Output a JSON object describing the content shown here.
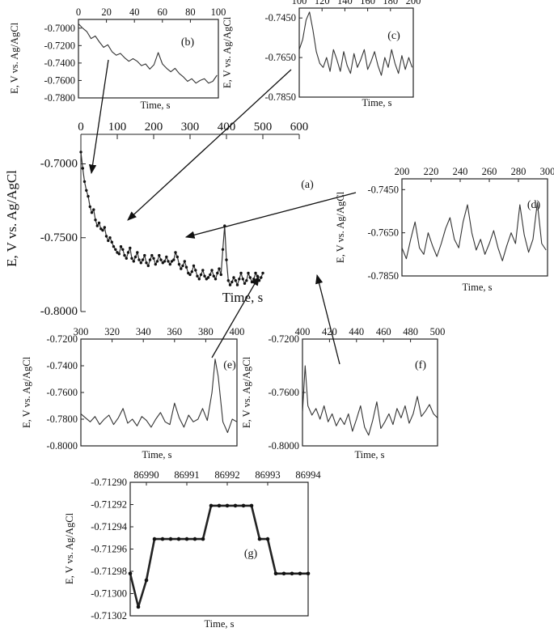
{
  "chart_data": [
    {
      "panel": "a",
      "type": "line",
      "x_range": [
        0,
        600
      ],
      "y_range": [
        -0.8,
        -0.68
      ],
      "x_ticks": [
        "0",
        "100",
        "200",
        "300",
        "400",
        "500",
        "600"
      ],
      "x_tick_values": [
        0,
        100,
        200,
        300,
        400,
        500,
        600
      ],
      "y_ticks": [
        "-0.7000",
        "-0.7500",
        "-0.8000"
      ],
      "y_tick_values": [
        -0.7,
        -0.75,
        -0.8
      ],
      "xlabel": "Time, s",
      "ylabel": "E, V vs. Ag/AgCl",
      "label": "(a)",
      "series": [
        {
          "style": "dots",
          "x": [
            0,
            5,
            10,
            15,
            20,
            25,
            30,
            35,
            40,
            45,
            50,
            55,
            60,
            65,
            70,
            75,
            80,
            85,
            90,
            95,
            100,
            105,
            110,
            115,
            120,
            125,
            130,
            135,
            140,
            145,
            150,
            155,
            160,
            165,
            170,
            175,
            180,
            185,
            190,
            195,
            200,
            205,
            210,
            215,
            220,
            225,
            230,
            235,
            240,
            245,
            250,
            255,
            260,
            265,
            270,
            275,
            280,
            285,
            290,
            295,
            300,
            305,
            310,
            315,
            320,
            325,
            330,
            335,
            340,
            345,
            350,
            355,
            360,
            365,
            370,
            375,
            380,
            385,
            390,
            395,
            400,
            405,
            410,
            415,
            420,
            425,
            430,
            435,
            440,
            445,
            450,
            455,
            460,
            465,
            470,
            475,
            480,
            485,
            490,
            495,
            500
          ],
          "y": [
            -0.692,
            -0.703,
            -0.712,
            -0.718,
            -0.722,
            -0.729,
            -0.733,
            -0.731,
            -0.738,
            -0.742,
            -0.74,
            -0.744,
            -0.745,
            -0.743,
            -0.749,
            -0.752,
            -0.75,
            -0.753,
            -0.756,
            -0.758,
            -0.76,
            -0.761,
            -0.756,
            -0.758,
            -0.762,
            -0.764,
            -0.76,
            -0.757,
            -0.764,
            -0.766,
            -0.763,
            -0.76,
            -0.765,
            -0.767,
            -0.765,
            -0.762,
            -0.767,
            -0.769,
            -0.765,
            -0.762,
            -0.764,
            -0.768,
            -0.766,
            -0.762,
            -0.765,
            -0.767,
            -0.766,
            -0.763,
            -0.766,
            -0.768,
            -0.766,
            -0.765,
            -0.76,
            -0.763,
            -0.768,
            -0.771,
            -0.769,
            -0.766,
            -0.77,
            -0.774,
            -0.775,
            -0.773,
            -0.769,
            -0.772,
            -0.776,
            -0.778,
            -0.775,
            -0.772,
            -0.776,
            -0.778,
            -0.777,
            -0.775,
            -0.772,
            -0.776,
            -0.778,
            -0.774,
            -0.771,
            -0.775,
            -0.758,
            -0.742,
            -0.765,
            -0.779,
            -0.782,
            -0.78,
            -0.777,
            -0.779,
            -0.782,
            -0.778,
            -0.774,
            -0.778,
            -0.781,
            -0.779,
            -0.774,
            -0.777,
            -0.78,
            -0.778,
            -0.774,
            -0.776,
            -0.779,
            -0.777,
            -0.774
          ]
        }
      ]
    },
    {
      "panel": "b",
      "type": "line",
      "x_range": [
        0,
        100
      ],
      "y_range": [
        -0.78,
        -0.69
      ],
      "x_ticks": [
        "0",
        "20",
        "40",
        "60",
        "80",
        "100"
      ],
      "x_tick_values": [
        0,
        20,
        40,
        60,
        80,
        100
      ],
      "y_ticks": [
        "-0.7000",
        "-0.7200",
        "-0.7400",
        "-0.7600",
        "-0.7800"
      ],
      "y_tick_values": [
        -0.7,
        -0.72,
        -0.74,
        -0.76,
        -0.78
      ],
      "xlabel": "Time, s",
      "ylabel": "E, V vs. Ag/AgCl",
      "label": "(b)",
      "series": [
        {
          "style": "line",
          "x": [
            0,
            3,
            6,
            9,
            12,
            15,
            18,
            21,
            24,
            27,
            30,
            33,
            36,
            39,
            42,
            45,
            48,
            51,
            54,
            57,
            60,
            63,
            66,
            69,
            72,
            75,
            78,
            81,
            84,
            87,
            90,
            93,
            96,
            99
          ],
          "y": [
            -0.695,
            -0.7,
            -0.704,
            -0.712,
            -0.709,
            -0.716,
            -0.722,
            -0.719,
            -0.727,
            -0.731,
            -0.729,
            -0.734,
            -0.738,
            -0.735,
            -0.738,
            -0.743,
            -0.741,
            -0.747,
            -0.742,
            -0.728,
            -0.741,
            -0.746,
            -0.75,
            -0.746,
            -0.752,
            -0.756,
            -0.761,
            -0.758,
            -0.763,
            -0.76,
            -0.758,
            -0.763,
            -0.761,
            -0.754
          ]
        }
      ]
    },
    {
      "panel": "c",
      "type": "line",
      "x_range": [
        100,
        200
      ],
      "y_range": [
        -0.785,
        -0.74
      ],
      "x_ticks": [
        "100",
        "120",
        "140",
        "160",
        "180",
        "200"
      ],
      "x_tick_values": [
        100,
        120,
        140,
        160,
        180,
        200
      ],
      "y_ticks": [
        "-0.7450",
        "-0.7650",
        "-0.7850"
      ],
      "y_tick_values": [
        -0.745,
        -0.765,
        -0.785
      ],
      "xlabel": "Time, s",
      "ylabel": "E, V vs. Ag/AgCl",
      "label": "(c)",
      "series": [
        {
          "style": "line",
          "x": [
            100,
            103,
            106,
            109,
            112,
            115,
            118,
            121,
            124,
            127,
            130,
            133,
            136,
            139,
            142,
            145,
            148,
            151,
            154,
            157,
            160,
            163,
            166,
            169,
            172,
            175,
            178,
            181,
            184,
            187,
            190,
            193,
            196,
            199
          ],
          "y": [
            -0.761,
            -0.756,
            -0.746,
            -0.742,
            -0.751,
            -0.762,
            -0.768,
            -0.77,
            -0.765,
            -0.772,
            -0.761,
            -0.766,
            -0.772,
            -0.762,
            -0.769,
            -0.773,
            -0.763,
            -0.77,
            -0.766,
            -0.761,
            -0.771,
            -0.767,
            -0.762,
            -0.769,
            -0.774,
            -0.765,
            -0.77,
            -0.761,
            -0.768,
            -0.773,
            -0.764,
            -0.771,
            -0.765,
            -0.77
          ]
        }
      ]
    },
    {
      "panel": "d",
      "type": "line",
      "x_range": [
        200,
        300
      ],
      "y_range": [
        -0.785,
        -0.74
      ],
      "x_ticks": [
        "200",
        "220",
        "240",
        "260",
        "280",
        "300"
      ],
      "x_tick_values": [
        200,
        220,
        240,
        260,
        280,
        300
      ],
      "y_ticks": [
        "-0.7450",
        "-0.7650",
        "-0.7850"
      ],
      "y_tick_values": [
        -0.745,
        -0.765,
        -0.785
      ],
      "xlabel": "Time, s",
      "ylabel": "E, V vs. Ag/AgCl",
      "label": "(d)",
      "series": [
        {
          "style": "line",
          "x": [
            200,
            203,
            206,
            209,
            212,
            215,
            218,
            221,
            224,
            227,
            230,
            233,
            236,
            239,
            242,
            245,
            248,
            251,
            254,
            257,
            260,
            263,
            266,
            269,
            272,
            275,
            278,
            281,
            284,
            287,
            290,
            293,
            296,
            299
          ],
          "y": [
            -0.772,
            -0.777,
            -0.768,
            -0.76,
            -0.772,
            -0.775,
            -0.765,
            -0.771,
            -0.776,
            -0.77,
            -0.763,
            -0.758,
            -0.768,
            -0.772,
            -0.76,
            -0.752,
            -0.765,
            -0.773,
            -0.768,
            -0.775,
            -0.77,
            -0.764,
            -0.772,
            -0.778,
            -0.771,
            -0.765,
            -0.77,
            -0.752,
            -0.766,
            -0.774,
            -0.768,
            -0.751,
            -0.77,
            -0.773
          ]
        }
      ]
    },
    {
      "panel": "e",
      "type": "line",
      "x_range": [
        300,
        400
      ],
      "y_range": [
        -0.8,
        -0.72
      ],
      "x_ticks": [
        "300",
        "320",
        "340",
        "360",
        "380",
        "400"
      ],
      "x_tick_values": [
        300,
        320,
        340,
        360,
        380,
        400
      ],
      "y_ticks": [
        "-0.7200",
        "-0.7400",
        "-0.7600",
        "-0.7800",
        "-0.8000"
      ],
      "y_tick_values": [
        -0.72,
        -0.74,
        -0.76,
        -0.78,
        -0.8
      ],
      "xlabel": "Time, s",
      "ylabel": "E, V vs. Ag/AgCl",
      "label": "(e)",
      "series": [
        {
          "style": "line",
          "x": [
            300,
            303,
            306,
            309,
            312,
            315,
            318,
            321,
            324,
            327,
            330,
            333,
            336,
            339,
            342,
            345,
            348,
            351,
            354,
            357,
            360,
            363,
            366,
            369,
            372,
            375,
            378,
            381,
            384,
            386,
            388,
            391,
            394,
            397,
            400
          ],
          "y": [
            -0.776,
            -0.779,
            -0.782,
            -0.778,
            -0.784,
            -0.78,
            -0.777,
            -0.784,
            -0.779,
            -0.772,
            -0.783,
            -0.78,
            -0.785,
            -0.778,
            -0.781,
            -0.786,
            -0.78,
            -0.775,
            -0.782,
            -0.784,
            -0.768,
            -0.779,
            -0.786,
            -0.777,
            -0.782,
            -0.78,
            -0.772,
            -0.781,
            -0.76,
            -0.735,
            -0.748,
            -0.782,
            -0.79,
            -0.78,
            -0.782
          ]
        }
      ]
    },
    {
      "panel": "f",
      "type": "line",
      "x_range": [
        400,
        500
      ],
      "y_range": [
        -0.8,
        -0.72
      ],
      "x_ticks": [
        "400",
        "420",
        "440",
        "460",
        "480",
        "500"
      ],
      "x_tick_values": [
        400,
        420,
        440,
        460,
        480,
        500
      ],
      "y_ticks": [
        "-0.7200",
        "-0.7600",
        "-0.8000"
      ],
      "y_tick_values": [
        -0.72,
        -0.76,
        -0.8
      ],
      "xlabel": "Time, s",
      "ylabel": "E, V vs. Ag/AgCl",
      "label": "(f)",
      "series": [
        {
          "style": "line",
          "x": [
            400,
            402,
            404,
            407,
            410,
            413,
            416,
            419,
            422,
            425,
            428,
            431,
            434,
            437,
            440,
            443,
            446,
            449,
            452,
            455,
            458,
            461,
            464,
            467,
            470,
            473,
            476,
            479,
            482,
            485,
            488,
            491,
            494,
            497,
            500
          ],
          "y": [
            -0.775,
            -0.74,
            -0.77,
            -0.777,
            -0.772,
            -0.78,
            -0.77,
            -0.782,
            -0.776,
            -0.785,
            -0.779,
            -0.784,
            -0.776,
            -0.789,
            -0.78,
            -0.77,
            -0.786,
            -0.792,
            -0.781,
            -0.767,
            -0.787,
            -0.782,
            -0.776,
            -0.784,
            -0.772,
            -0.779,
            -0.77,
            -0.783,
            -0.776,
            -0.763,
            -0.778,
            -0.774,
            -0.769,
            -0.776,
            -0.779
          ]
        }
      ]
    },
    {
      "panel": "g",
      "type": "line",
      "x_range": [
        86989.6,
        86994
      ],
      "y_range": [
        -0.71302,
        -0.7129
      ],
      "x_ticks": [
        "86990",
        "86991",
        "86992",
        "86993",
        "86994"
      ],
      "x_tick_values": [
        86990,
        86991,
        86992,
        86993,
        86994
      ],
      "y_ticks": [
        "-0.71290",
        "-0.71292",
        "-0.71294",
        "-0.71296",
        "-0.71298",
        "-0.71300",
        "-0.71302"
      ],
      "y_tick_values": [
        -0.7129,
        -0.71292,
        -0.71294,
        -0.71296,
        -0.71298,
        -0.713,
        -0.71302
      ],
      "xlabel": "Time, s",
      "ylabel": "E, V vs. Ag/AgCl",
      "label": "(g)",
      "series": [
        {
          "style": "line-markers",
          "x": [
            86989.6,
            86989.8,
            86990.0,
            86990.2,
            86990.4,
            86990.6,
            86990.8,
            86991.0,
            86991.2,
            86991.4,
            86991.6,
            86991.8,
            86992.0,
            86992.2,
            86992.4,
            86992.6,
            86992.8,
            86993.0,
            86993.2,
            86993.4,
            86993.6,
            86993.8,
            86994.0
          ],
          "y": [
            -0.712982,
            -0.713012,
            -0.712988,
            -0.712951,
            -0.712951,
            -0.712951,
            -0.712951,
            -0.712951,
            -0.712951,
            -0.712951,
            -0.712921,
            -0.712921,
            -0.712921,
            -0.712921,
            -0.712921,
            -0.712921,
            -0.712951,
            -0.712951,
            -0.712982,
            -0.712982,
            -0.712982,
            -0.712982,
            -0.712982
          ]
        }
      ]
    }
  ]
}
